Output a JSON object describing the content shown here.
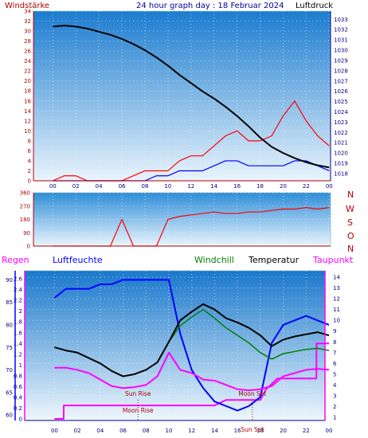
{
  "header": {
    "wind_label": "Windstärke",
    "title": "24 hour graph day : 18 Februar 2024",
    "pressure_label": "Luftdruck"
  },
  "bottom_header": {
    "regen": "Regen",
    "luftfeuchte": "Luftfeuchte",
    "windchill": "Windchill",
    "temperatur": "Temperatur",
    "taupunkt": "Taupunkt"
  },
  "colors": {
    "wind_speed": "#ff0000",
    "wind_gust": "#0000ff",
    "pressure": "#000000",
    "regen_axis": "#ff00ff",
    "luftfeuchte": "#0000ff",
    "windchill": "#008000",
    "temperatur": "#000000",
    "taupunkt": "#ff00ff",
    "axis_label": "#b00000"
  },
  "chart_data": [
    {
      "type": "line",
      "name": "wind-pressure",
      "x_ticks": [
        "00",
        "02",
        "04",
        "06",
        "08",
        "10",
        "12",
        "14",
        "16",
        "18",
        "20",
        "22",
        "00"
      ],
      "y_left": {
        "label": "Windstärke",
        "range": [
          0,
          34
        ],
        "ticks": [
          0,
          2,
          4,
          6,
          8,
          10,
          12,
          14,
          16,
          18,
          20,
          22,
          24,
          26,
          28,
          30,
          32,
          34
        ]
      },
      "y_right": {
        "label": "Luftdruck",
        "range": [
          1017.3,
          1033.8
        ],
        "ticks": [
          1018,
          1019,
          1020,
          1021,
          1022,
          1023,
          1024,
          1025,
          1026,
          1027,
          1028,
          1029,
          1030,
          1031,
          1032,
          1033
        ]
      },
      "series": [
        {
          "name": "Luftdruck",
          "axis": "right",
          "x": [
            0,
            1,
            2,
            3,
            4,
            5,
            6,
            7,
            8,
            9,
            10,
            11,
            12,
            13,
            14,
            15,
            16,
            17,
            18,
            19,
            20,
            21,
            22,
            23,
            24
          ],
          "values": [
            1032.3,
            1032.4,
            1032.3,
            1032.1,
            1031.8,
            1031.5,
            1031.1,
            1030.6,
            1030.0,
            1029.3,
            1028.5,
            1027.6,
            1026.8,
            1026.0,
            1025.3,
            1024.5,
            1023.6,
            1022.6,
            1021.5,
            1020.6,
            1020.0,
            1019.5,
            1019.1,
            1018.8,
            1018.6
          ]
        },
        {
          "axis": "left",
          "x": [
            0,
            1,
            2,
            3,
            4,
            5,
            6,
            7,
            8,
            9,
            10,
            11,
            12,
            13,
            14,
            15,
            16,
            17,
            18,
            19,
            20,
            21,
            22,
            23,
            24
          ],
          "values": [
            0,
            1,
            1,
            0,
            0,
            0,
            0,
            1,
            2,
            2,
            2,
            4,
            5,
            5,
            7,
            9,
            10,
            8,
            8,
            9,
            13,
            16,
            12,
            9,
            7
          ]
        },
        {
          "axis": "left",
          "x": [
            0,
            1,
            2,
            3,
            4,
            5,
            6,
            7,
            8,
            9,
            10,
            11,
            12,
            13,
            14,
            15,
            16,
            17,
            18,
            19,
            20,
            21,
            22,
            23,
            24
          ],
          "values": [
            0,
            0,
            0,
            0,
            0,
            0,
            0,
            0,
            0,
            1,
            1,
            2,
            2,
            2,
            3,
            4,
            4,
            3,
            3,
            3,
            3,
            4,
            4,
            3,
            2
          ]
        }
      ]
    },
    {
      "type": "scatter",
      "name": "wind-direction",
      "x_ticks": [],
      "y_left": {
        "range": [
          0,
          360
        ],
        "ticks": [
          0,
          90,
          180,
          270,
          360
        ]
      },
      "right_labels": [
        "N",
        "W",
        "S",
        "O",
        "N"
      ],
      "x": [
        0,
        1,
        2,
        3,
        4,
        5,
        6,
        7,
        8,
        9,
        10,
        11,
        12,
        13,
        14,
        15,
        16,
        17,
        18,
        19,
        20,
        21,
        22,
        23,
        24
      ],
      "values": [
        0,
        0,
        0,
        0,
        0,
        0,
        180,
        0,
        0,
        0,
        180,
        200,
        210,
        220,
        230,
        220,
        220,
        230,
        230,
        240,
        250,
        250,
        260,
        250,
        260
      ]
    },
    {
      "type": "line",
      "name": "climate",
      "x_ticks": [
        "00",
        "02",
        "04",
        "06",
        "08",
        "10",
        "12",
        "14",
        "16",
        "18",
        "20",
        "22",
        "00"
      ],
      "y_left_outer": {
        "label": "Regen",
        "range": [
          -0.03,
          2.75
        ],
        "ticks": [
          0,
          0.2,
          0.4,
          0.6,
          0.8,
          1,
          1.2,
          1.4,
          1.6,
          1.8,
          2,
          2.2,
          2.4,
          2.6
        ]
      },
      "y_left_inner": {
        "label": "Luftfeuchte",
        "range": [
          58.8,
          92.0
        ],
        "ticks": [
          60,
          65,
          70,
          75,
          80,
          85,
          90
        ]
      },
      "y_right": {
        "label": "Taupunkt",
        "range": [
          0.7,
          14.6
        ],
        "ticks": [
          1,
          2,
          3,
          4,
          5,
          6,
          7,
          8,
          9,
          10,
          11,
          12,
          13,
          14
        ]
      },
      "series": [
        {
          "name": "Luftfeuchte",
          "axis": "inner",
          "x": [
            0,
            1,
            2,
            3,
            4,
            5,
            6,
            7,
            8,
            9,
            10,
            11,
            12,
            13,
            14,
            15,
            16,
            17,
            18,
            19,
            20,
            21,
            22,
            23,
            24
          ],
          "values": [
            86,
            88,
            88,
            88,
            89,
            89,
            90,
            90,
            90,
            90,
            90,
            78,
            70,
            66,
            63,
            62,
            61,
            62,
            64,
            76,
            80,
            81,
            82,
            81,
            80
          ]
        },
        {
          "name": "Temperatur",
          "axis": "right",
          "x": [
            0,
            1,
            2,
            3,
            4,
            5,
            6,
            7,
            8,
            9,
            10,
            11,
            12,
            13,
            14,
            15,
            16,
            17,
            18,
            19,
            20,
            21,
            22,
            23,
            24
          ],
          "values": [
            7.5,
            7.2,
            7.0,
            6.5,
            6.0,
            5.3,
            4.8,
            5.0,
            5.4,
            6.1,
            8.0,
            10.0,
            10.8,
            11.5,
            11.0,
            10.2,
            9.8,
            9.3,
            8.6,
            7.6,
            8.2,
            8.5,
            8.7,
            8.9,
            8.6
          ]
        },
        {
          "name": "Windchill",
          "axis": "right",
          "x": [
            0,
            1,
            2,
            3,
            4,
            5,
            6,
            7,
            8,
            9,
            10,
            11,
            12,
            13,
            14,
            15,
            16,
            17,
            18,
            19,
            20,
            21,
            22,
            23,
            24
          ],
          "values": [
            7.5,
            7.2,
            7.0,
            6.5,
            6.0,
            5.3,
            4.8,
            5.0,
            5.4,
            6.1,
            8.0,
            9.5,
            10.3,
            11.0,
            10.2,
            9.3,
            8.6,
            7.9,
            7.0,
            6.4,
            6.9,
            7.1,
            7.3,
            7.4,
            7.2
          ]
        },
        {
          "name": "Taupunkt",
          "axis": "right",
          "x": [
            0,
            1,
            2,
            3,
            4,
            5,
            6,
            7,
            8,
            9,
            10,
            11,
            12,
            13,
            14,
            15,
            16,
            17,
            18,
            19,
            20,
            21,
            22,
            23,
            24
          ],
          "values": [
            5.6,
            5.6,
            5.4,
            5.1,
            4.5,
            3.9,
            3.7,
            3.8,
            4.0,
            4.8,
            7.0,
            5.4,
            5.1,
            4.5,
            4.4,
            4.0,
            3.6,
            3.5,
            3.6,
            3.9,
            4.8,
            5.1,
            5.4,
            5.5,
            5.4
          ]
        },
        {
          "name": "Regen",
          "axis": "outer",
          "x": [
            0,
            0.8,
            0.81,
            1.0,
            5.0,
            6.0,
            6.5,
            7.0,
            8.0,
            8.5,
            10.0,
            14.0,
            15.0,
            16.0,
            17.0,
            18.0,
            18.5,
            19.5,
            20.5,
            21.0,
            22.0,
            22.9,
            22.91,
            23.7,
            24.0
          ],
          "values": [
            0,
            0,
            0.25,
            0.25,
            0.25,
            0.25,
            0.25,
            0.25,
            0.25,
            0.25,
            0.25,
            0.25,
            0.35,
            0.35,
            0.35,
            0.35,
            0.55,
            0.75,
            0.75,
            0.75,
            0.75,
            0.75,
            1.4,
            1.4,
            1.4
          ]
        }
      ],
      "annotations": [
        {
          "text": "Sun Rise",
          "x": 7.3
        },
        {
          "text": "Moon Rise",
          "x": 7.3
        },
        {
          "text": "Sun Set",
          "x": 17.3
        },
        {
          "text": "Moon Set",
          "x": 17.3
        }
      ]
    }
  ]
}
